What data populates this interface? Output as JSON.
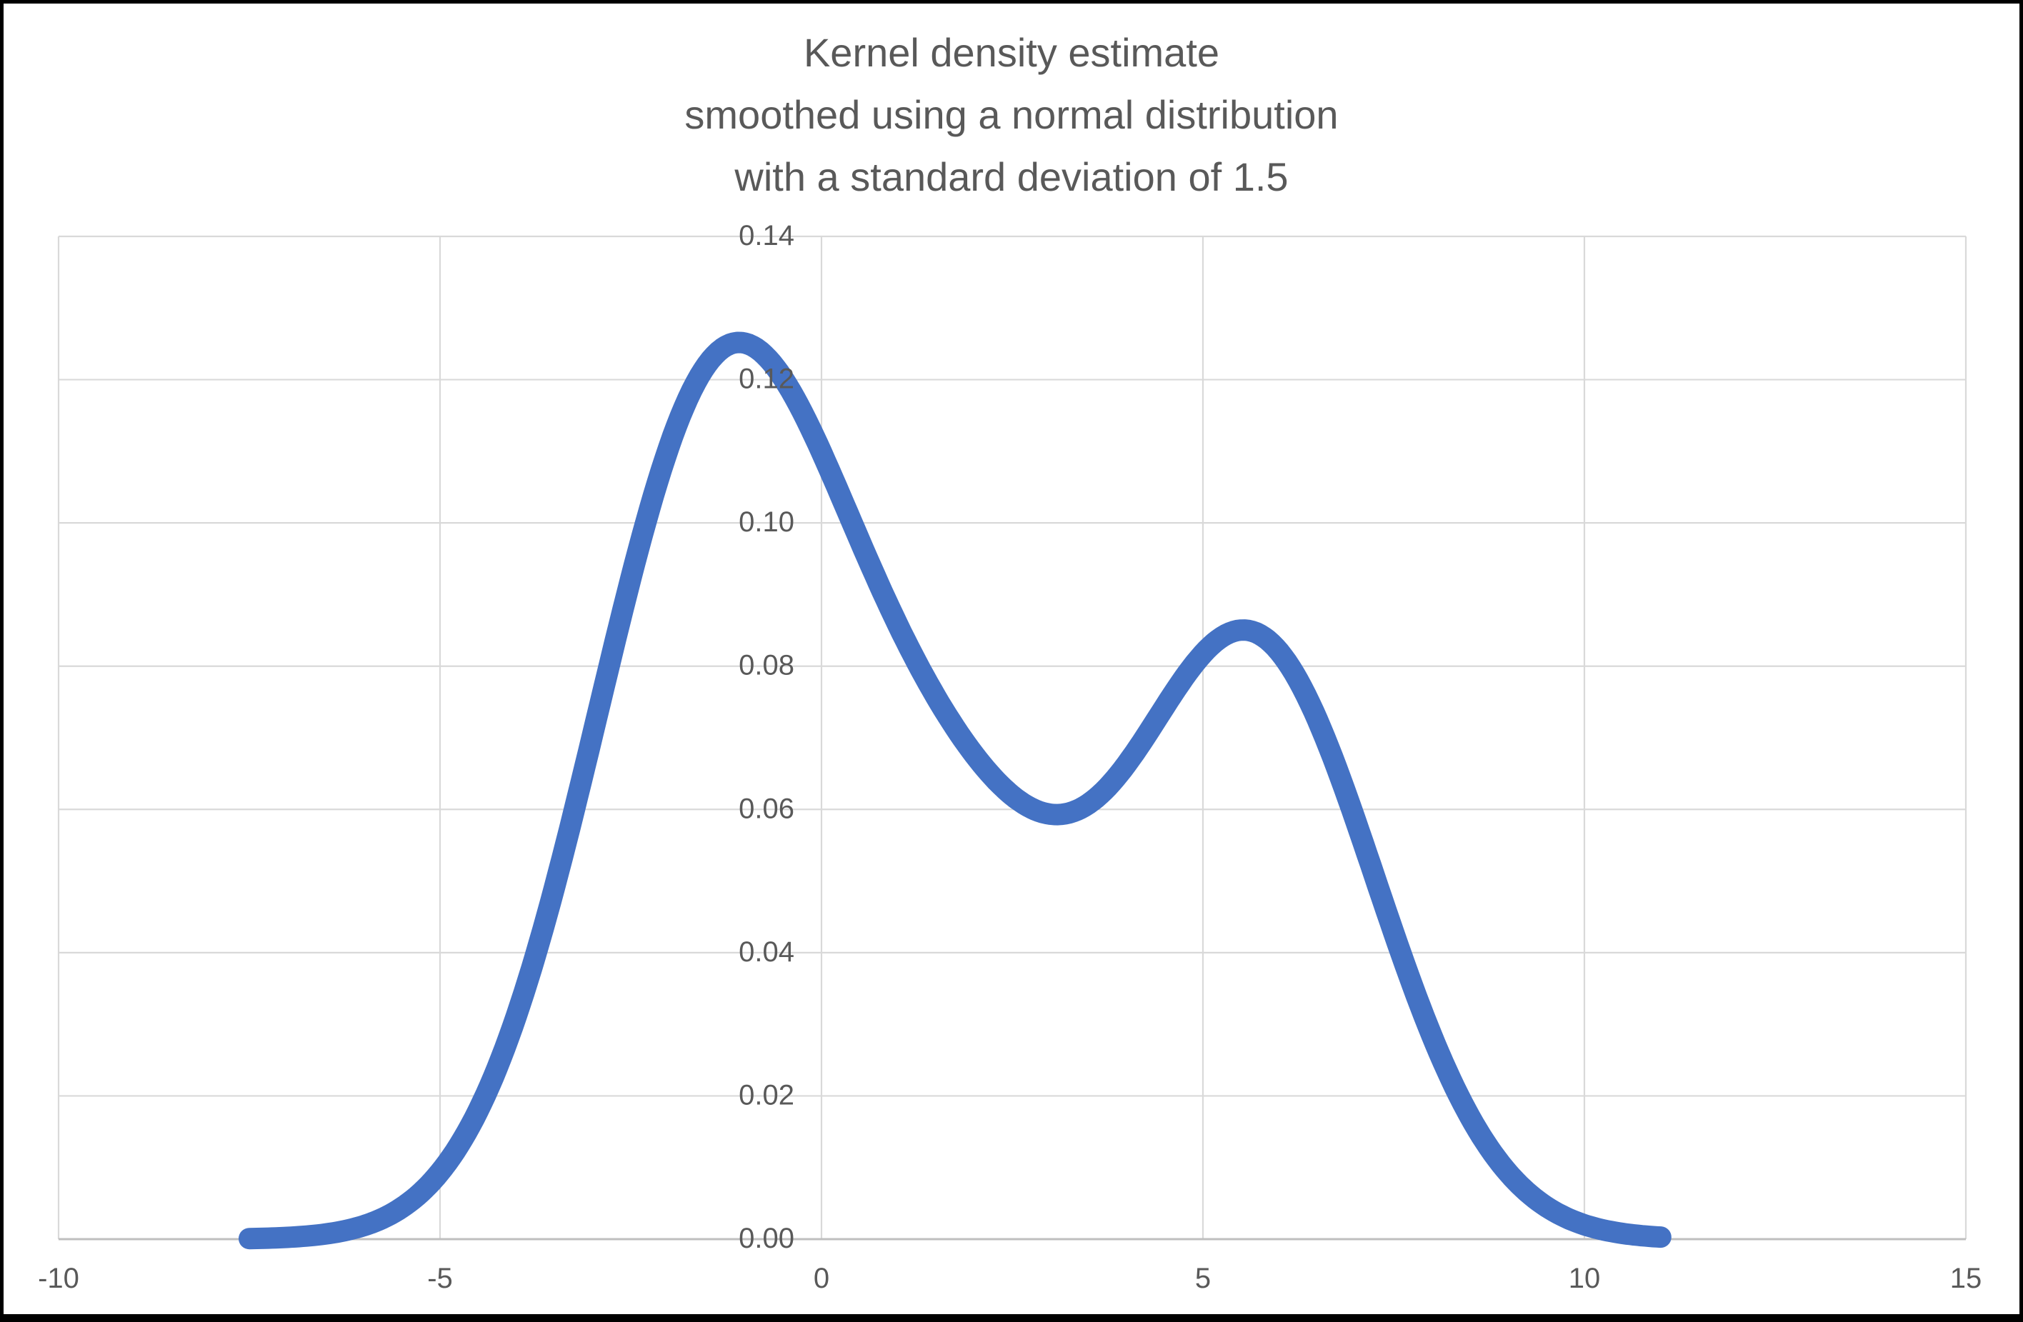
{
  "window": {
    "frame_color": "#000000",
    "background_color": "#ffffff"
  },
  "chart_data": {
    "type": "line",
    "title_lines": [
      "Kernel density estimate",
      "smoothed using a normal distribution",
      "with a standard deviation of 1.5"
    ],
    "x_tick_labels": [
      "-10",
      "-5",
      "0",
      "5",
      "10",
      "15"
    ],
    "x_tick_values": [
      -10,
      -5,
      0,
      5,
      10,
      15
    ],
    "y_tick_labels": [
      "0.00",
      "0.02",
      "0.04",
      "0.06",
      "0.08",
      "0.10",
      "0.12",
      "0.14"
    ],
    "y_tick_values": [
      0,
      0.02,
      0.04,
      0.06,
      0.08,
      0.1,
      0.12,
      0.14
    ],
    "x_range": [
      -10,
      15
    ],
    "y_range": [
      0,
      0.14
    ],
    "grid": true,
    "legend_position": "none",
    "series": [
      {
        "name": "Kernel density estimate",
        "color": "#4472C4",
        "stroke_width_px": 30,
        "generator": {
          "kind": "gaussian_kde",
          "samples": [
            -2.1,
            -1.3,
            -0.4,
            1.9,
            5.1,
            6.2
          ],
          "kernel_sd": 1.5,
          "x_start": -7.5,
          "x_end": 11,
          "x_step": 0.05
        },
        "landmarks": {
          "left_end": {
            "x": -7.5,
            "y": 0.0001
          },
          "peak1": {
            "x": -1.05,
            "y": 0.125
          },
          "valley": {
            "x": 3.1,
            "y": 0.059
          },
          "peak2": {
            "x": 5.55,
            "y": 0.085
          },
          "right_end": {
            "x": 11,
            "y": 0.0003
          }
        }
      }
    ],
    "colors": {
      "gridline": "#D9D9D9",
      "axis_line": "#BFBFBF",
      "tick_text": "#595959",
      "title_text": "#595959"
    }
  }
}
